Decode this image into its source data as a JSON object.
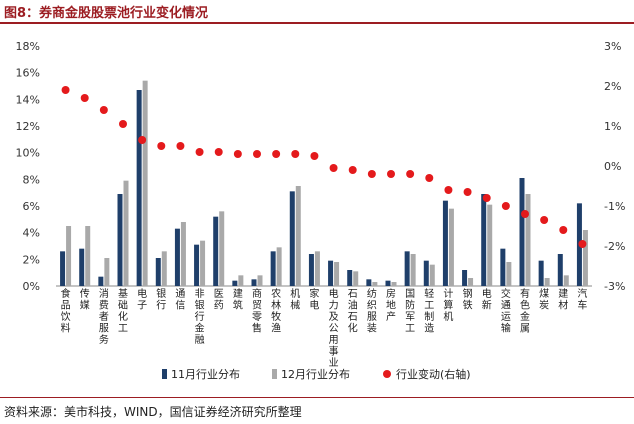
{
  "title": "图8：券商金股股票池行业变化情况",
  "source": "资料来源：美市科技，WIND，国信证券经济研究所整理",
  "chart_data": {
    "type": "bar",
    "categories": [
      "食品饮料",
      "传媒",
      "消费者服务",
      "基础化工",
      "电子",
      "银行",
      "通信",
      "非银行金融",
      "医药",
      "建筑",
      "商贸零售",
      "农林牧渔",
      "机械",
      "家电",
      "电力及公用事业",
      "石油石化",
      "纺织服装",
      "房地产",
      "国防军工",
      "轻工制造",
      "计算机",
      "钢铁",
      "电新",
      "交通运输",
      "有色金属",
      "煤炭",
      "建材",
      "汽车"
    ],
    "series": [
      {
        "name": "11月行业分布",
        "axis": "left",
        "color": "#1f3f6a",
        "values": [
          2.6,
          2.8,
          0.7,
          6.9,
          14.7,
          2.1,
          4.3,
          3.1,
          5.2,
          0.4,
          0.5,
          2.6,
          7.1,
          2.4,
          1.9,
          1.2,
          0.5,
          0.4,
          2.6,
          1.9,
          6.4,
          1.2,
          6.9,
          2.8,
          8.1,
          1.9,
          2.4,
          6.2
        ]
      },
      {
        "name": "12月行业分布",
        "axis": "left",
        "color": "#a9a9a9",
        "values": [
          4.5,
          4.5,
          2.1,
          7.9,
          15.4,
          2.6,
          4.8,
          3.4,
          5.6,
          0.8,
          0.8,
          2.9,
          7.5,
          2.6,
          1.8,
          1.1,
          0.3,
          0.3,
          2.4,
          1.6,
          5.8,
          0.6,
          6.1,
          1.8,
          6.9,
          0.6,
          0.8,
          4.2
        ]
      },
      {
        "name": "行业变动(右轴)",
        "axis": "right",
        "color": "#e41a1c",
        "values": [
          1.9,
          1.7,
          1.4,
          1.05,
          0.65,
          0.5,
          0.5,
          0.35,
          0.35,
          0.3,
          0.3,
          0.3,
          0.3,
          0.25,
          -0.05,
          -0.1,
          -0.2,
          -0.2,
          -0.2,
          -0.3,
          -0.6,
          -0.65,
          -0.8,
          -1.0,
          -1.2,
          -1.35,
          -1.6,
          -1.95
        ]
      }
    ],
    "left_axis": {
      "min": 0,
      "max": 18,
      "step": 2,
      "ticks": [
        "0%",
        "2%",
        "4%",
        "6%",
        "8%",
        "10%",
        "12%",
        "14%",
        "16%",
        "18%"
      ]
    },
    "right_axis": {
      "min": -3,
      "max": 3,
      "step": 1,
      "ticks": [
        "-3%",
        "-2%",
        "-1%",
        "0%",
        "1%",
        "2%",
        "3%"
      ]
    },
    "legend": {
      "position": "bottom",
      "items": [
        "11月行业分布",
        "12月行业分布",
        "行业变动(右轴)"
      ]
    }
  }
}
